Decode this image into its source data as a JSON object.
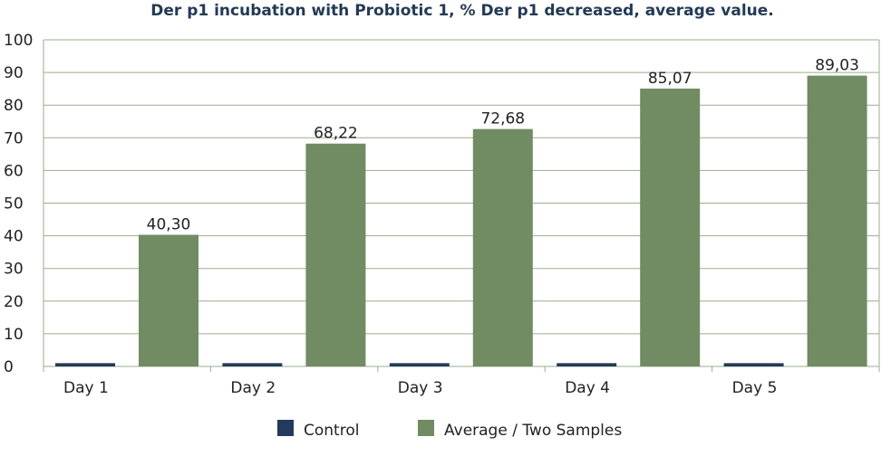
{
  "chart_data": {
    "type": "bar",
    "title": "Der p1 incubation with Probiotic 1, % Der p1 decreased, average value.",
    "categories": [
      "Day 1",
      "Day 2",
      "Day 3",
      "Day 4",
      "Day 5"
    ],
    "series": [
      {
        "name": "Control",
        "values": [
          1,
          1,
          1,
          1,
          1
        ],
        "labels": [
          "",
          "",
          "",
          "",
          ""
        ]
      },
      {
        "name": "Average / Two Samples",
        "values": [
          40.3,
          68.22,
          72.68,
          85.07,
          89.03
        ],
        "labels": [
          "40,30",
          "68,22",
          "72,68",
          "85,07",
          "89,03"
        ]
      }
    ],
    "ylim": [
      0,
      100
    ],
    "yticks": [
      0,
      10,
      20,
      30,
      40,
      50,
      60,
      70,
      80,
      90,
      100
    ],
    "grid": true,
    "legend_position": "bottom",
    "colors": {
      "Control": "#243a5a",
      "Average / Two Samples": "#718b63",
      "grid": "#9aae8e"
    }
  }
}
